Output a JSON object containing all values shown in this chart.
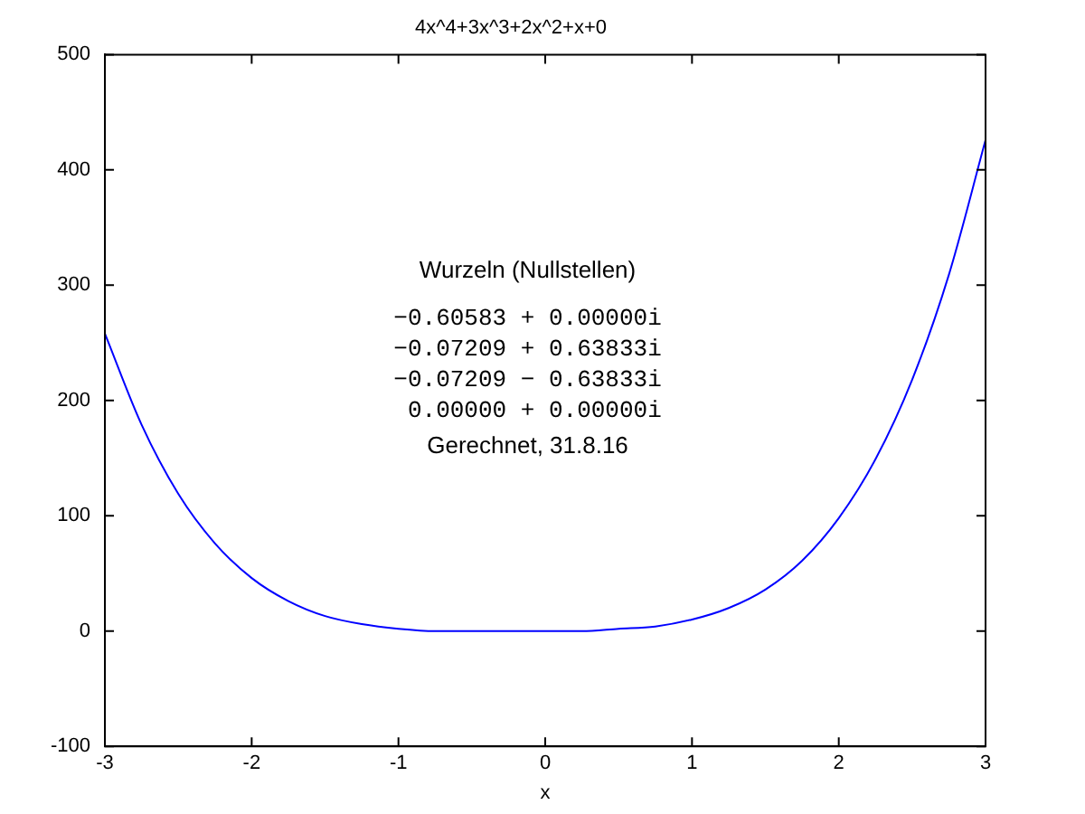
{
  "chart_data": {
    "type": "line",
    "title": "4x^4+3x^3+2x^2+x+0",
    "xlabel": "x",
    "x": [
      -3,
      -2.75,
      -2.5,
      -2.25,
      -2,
      -1.75,
      -1.5,
      -1.25,
      -1,
      -0.75,
      -0.5,
      -0.25,
      0,
      0.25,
      0.5,
      0.75,
      1,
      1.25,
      1.5,
      1.75,
      2,
      2.25,
      2.5,
      2.75,
      3
    ],
    "series": [
      {
        "color": "#0000ff",
        "values": [
          258,
          179,
          119,
          76,
          46,
          26,
          13,
          6,
          2,
          0,
          0,
          0,
          0,
          0,
          2,
          4,
          10,
          20,
          36,
          61,
          98,
          149,
          218,
          309,
          426
        ]
      }
    ],
    "xlim": [
      -3,
      3
    ],
    "xticks": [
      -3,
      -2,
      -1,
      0,
      1,
      2,
      3
    ],
    "ylim": [
      -100,
      500
    ],
    "yticks": [
      -100,
      0,
      100,
      200,
      300,
      400,
      500
    ],
    "grid": false,
    "legend": false,
    "marker": "none",
    "line_style": "solid",
    "annotations": [
      "Wurzeln (Nullstellen)",
      "−0.60583 + 0.00000i",
      "−0.07209 + 0.63833i",
      "−0.07209 − 0.63833i",
      " 0.00000 + 0.00000i",
      "Gerechnet, 31.8.16"
    ]
  }
}
